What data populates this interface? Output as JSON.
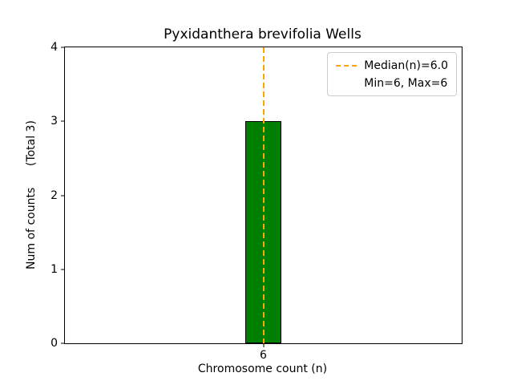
{
  "chart_data": {
    "type": "bar",
    "title": "Pyxidanthera brevifolia Wells",
    "xlabel": "Chromosome count (n)",
    "ylabel": "Num of counts      (Total 3)",
    "categories": [
      "6"
    ],
    "values": [
      3
    ],
    "ylim": [
      0,
      4
    ],
    "yticks": [
      0,
      1,
      2,
      3,
      4
    ],
    "grid": false,
    "bar_color": "#008000",
    "bar_edge_color": "#000000",
    "median_line": {
      "value": 6.0,
      "category_index": 0,
      "color": "#ffa500",
      "style": "dashed"
    },
    "legend": {
      "position": "upper right",
      "entries": [
        "Median(n)=6.0",
        "Min=6, Max=6"
      ]
    }
  }
}
